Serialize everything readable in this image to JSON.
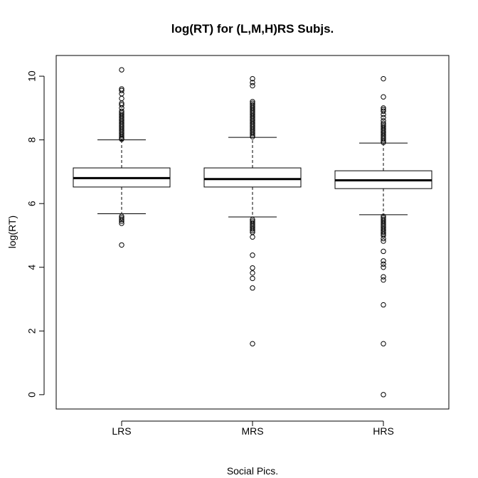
{
  "chart_data": {
    "type": "boxplot",
    "title": "log(RT) for (L,M,H)RS Subjs.",
    "xlabel": "Social Pics.",
    "ylabel": "log(RT)",
    "ylim": [
      -0.45,
      10.65
    ],
    "yticks": [
      0,
      2,
      4,
      6,
      8,
      10
    ],
    "categories": [
      "LRS",
      "MRS",
      "HRS"
    ],
    "boxes": [
      {
        "name": "LRS",
        "whisker_low": 5.68,
        "q1": 6.52,
        "median": 6.8,
        "q3": 7.12,
        "whisker_high": 8.0,
        "outliers_high": [
          8.02,
          8.05,
          8.1,
          8.15,
          8.2,
          8.25,
          8.3,
          8.35,
          8.4,
          8.45,
          8.5,
          8.55,
          8.6,
          8.65,
          8.7,
          8.75,
          8.8,
          8.85,
          8.9,
          9.0,
          9.1,
          9.15,
          9.3,
          9.45,
          9.55,
          9.6,
          10.2
        ],
        "outliers_low": [
          5.6,
          5.55,
          5.5,
          5.45,
          5.38,
          4.7
        ]
      },
      {
        "name": "MRS",
        "whisker_low": 5.58,
        "q1": 6.52,
        "median": 6.77,
        "q3": 7.12,
        "whisker_high": 8.08,
        "outliers_high": [
          8.1,
          8.15,
          8.2,
          8.25,
          8.3,
          8.35,
          8.4,
          8.45,
          8.5,
          8.55,
          8.6,
          8.65,
          8.7,
          8.75,
          8.8,
          8.85,
          8.9,
          8.95,
          9.0,
          9.05,
          9.1,
          9.15,
          9.2,
          9.7,
          9.8,
          9.92
        ],
        "outliers_low": [
          5.5,
          5.45,
          5.4,
          5.35,
          5.3,
          5.25,
          5.2,
          5.15,
          5.1,
          4.95,
          4.38,
          3.98,
          3.82,
          3.65,
          3.35,
          1.6
        ]
      },
      {
        "name": "HRS",
        "whisker_low": 5.65,
        "q1": 6.47,
        "median": 6.73,
        "q3": 7.03,
        "whisker_high": 7.9,
        "outliers_high": [
          7.92,
          7.97,
          8.02,
          8.07,
          8.12,
          8.17,
          8.22,
          8.27,
          8.32,
          8.37,
          8.42,
          8.47,
          8.52,
          8.6,
          8.7,
          8.8,
          8.9,
          8.95,
          9.0,
          9.35,
          9.92
        ],
        "outliers_low": [
          5.6,
          5.55,
          5.5,
          5.45,
          5.4,
          5.35,
          5.3,
          5.25,
          5.2,
          5.15,
          5.1,
          5.05,
          5.0,
          4.9,
          4.82,
          4.5,
          4.2,
          4.1,
          4.0,
          3.7,
          3.6,
          2.82,
          1.6,
          0.0
        ]
      }
    ],
    "grid": false,
    "legend": "none",
    "colors": {
      "line": "#000000",
      "background": "#ffffff"
    }
  }
}
